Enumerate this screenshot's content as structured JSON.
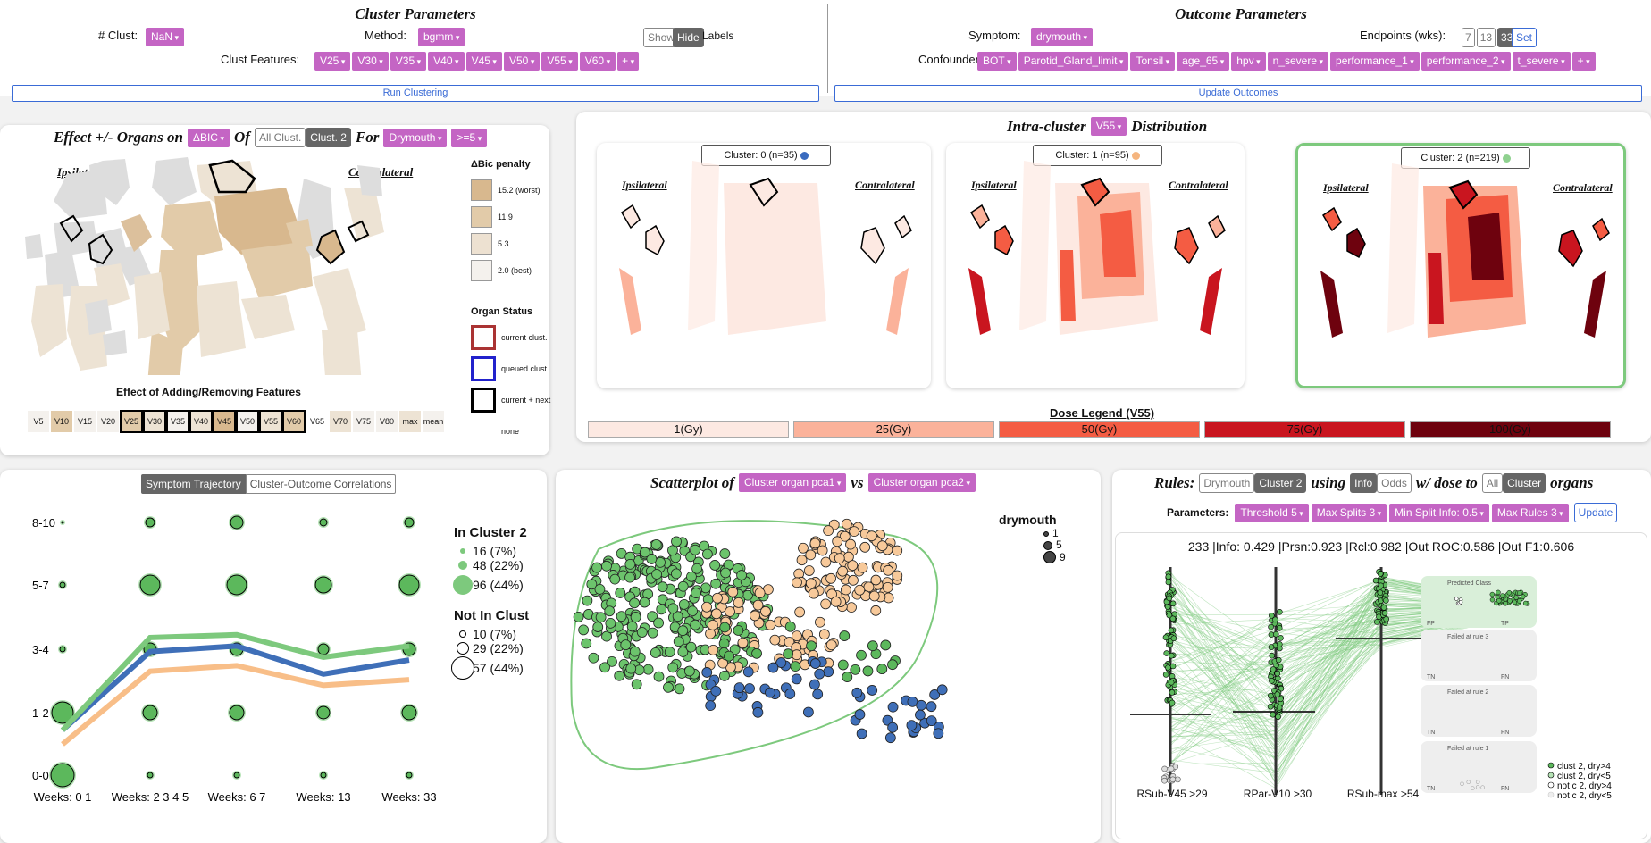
{
  "cluster_params": {
    "title": "Cluster Parameters",
    "nclust_label": "# Clust:",
    "nclust_value": "NaN",
    "method_label": "Method:",
    "method_value": "bgmm",
    "show_label": "Show",
    "hide_label": "Hide",
    "labels_label": "Labels",
    "features_label": "Clust Features:",
    "features": [
      "V25",
      "V30",
      "V35",
      "V40",
      "V45",
      "V50",
      "V55",
      "V60",
      "+"
    ],
    "run_label": "Run Clustering"
  },
  "outcome_params": {
    "title": "Outcome Parameters",
    "symptom_label": "Symptom:",
    "symptom_value": "drymouth",
    "endpoints_label": "Endpoints (wks):",
    "endpoints": [
      "7",
      "13",
      "33"
    ],
    "set_label": "Set",
    "confounders_label": "Confounders:",
    "confounders": [
      "BOT",
      "Parotid_Gland_limit",
      "Tonsil",
      "age_65",
      "hpv",
      "n_severe",
      "performance_1",
      "performance_2",
      "t_severe",
      "+"
    ],
    "update_label": "Update Outcomes"
  },
  "effect_panel": {
    "t1": "Effect +/- Organs on",
    "metric": "ΔBIC",
    "t2": "Of",
    "all_clust": "All Clust.",
    "clust2": "Clust. 2",
    "t3": "For",
    "symptom": "Drymouth",
    "threshold": ">=5",
    "ipsi": "Ipsilateral",
    "contra": "Contralateral",
    "penalty_title": "ΔBic penalty",
    "penalty": [
      {
        "label": "15.2 (worst)",
        "color": "#d8b88e"
      },
      {
        "label": "11.9",
        "color": "#e2cba9"
      },
      {
        "label": "5.3",
        "color": "#ede1d1"
      },
      {
        "label": "2.0 (best)",
        "color": "#f4f1ed"
      }
    ],
    "status_title": "Organ Status",
    "status": [
      {
        "label": "current clust.",
        "color": "#a33"
      },
      {
        "label": "queued clust.",
        "color": "#22c"
      },
      {
        "label": "current + next",
        "color": "#000"
      },
      {
        "label": "none",
        "color": "none"
      }
    ],
    "features_title": "Effect of Adding/Removing Features",
    "features": [
      "V5",
      "V10",
      "V15",
      "V20",
      "V25",
      "V30",
      "V35",
      "V40",
      "V45",
      "V50",
      "V55",
      "V60",
      "V65",
      "V70",
      "V75",
      "V80",
      "max",
      "mean"
    ]
  },
  "dist_panel": {
    "t1": "Intra-cluster",
    "feature": "V55",
    "t2": "Distribution",
    "clusters": [
      {
        "label": "Cluster: 0 (n=35)",
        "dot": "#3a6bbf"
      },
      {
        "label": "Cluster: 1 (n=95)",
        "dot": "#f5b57f"
      },
      {
        "label": "Cluster: 2 (n=219)",
        "dot": "#8fd18f"
      }
    ],
    "ipsi": "Ipsilateral",
    "contra": "Contralateral",
    "legend_title": "Dose Legend (V55)",
    "legend": [
      {
        "label": "1(Gy)",
        "color": "#fde9e2"
      },
      {
        "label": "25(Gy)",
        "color": "#fbb29a"
      },
      {
        "label": "50(Gy)",
        "color": "#f45c43"
      },
      {
        "label": "75(Gy)",
        "color": "#c9151f"
      },
      {
        "label": "100(Gy)",
        "color": "#6e020e"
      }
    ]
  },
  "trajectory": {
    "tab1": "Symptom Trajectory",
    "tab2": "Cluster-Outcome Correlations",
    "y_labels": [
      "8-10",
      "5-7",
      "3-4",
      "1-2",
      "0-0"
    ],
    "x_labels": [
      "Weeks: 0 1",
      "Weeks: 2 3 4 5",
      "Weeks: 6 7",
      "Weeks: 13",
      "Weeks: 33"
    ],
    "lines": [
      {
        "name": "green",
        "color": "#7dc97d",
        "values": [
          1.6,
          4.9,
          5.0,
          4.2,
          4.6
        ]
      },
      {
        "name": "blue",
        "color": "#3f6fb8",
        "values": [
          1.6,
          4.4,
          4.6,
          3.6,
          4.1
        ]
      },
      {
        "name": "orange",
        "color": "#f8be88",
        "values": [
          1.1,
          3.7,
          3.9,
          3.2,
          3.4
        ]
      }
    ],
    "in_title": "In Cluster 2",
    "in_items": [
      "16 (7%)",
      "48 (22%)",
      "96 (44%)"
    ],
    "out_title": "Not In Clust",
    "out_items": [
      "10 (7%)",
      "29 (22%)",
      "57 (44%)"
    ]
  },
  "scatter": {
    "t1": "Scatterplot of",
    "x": "Cluster organ pca1",
    "vs": "vs",
    "y": "Cluster organ pca2",
    "legend_title": "drymouth",
    "legend": [
      "1",
      "5",
      "9"
    ]
  },
  "rules": {
    "t1": "Rules:",
    "b1": "Drymouth",
    "b2": "Cluster 2",
    "t2": "using",
    "b3": "Info",
    "b4": "Odds",
    "t3": "w/ dose to",
    "b5": "All",
    "b6": "Cluster",
    "t4": "organs",
    "params_label": "Parameters:",
    "params": [
      "Threshold 5",
      "Max Splits 3",
      "Min Split Info: 0.5",
      "Max Rules 3"
    ],
    "update": "Update",
    "stats": "233 |Info: 0.429 |Prsn:0.923 |Rcl:0.982 |Out ROC:0.586 |Out F1:0.606",
    "axes": [
      "RSub-V45 >29",
      "RPar-V10 >30",
      "RSub-max >54"
    ],
    "boxes": [
      {
        "title": "Predicted Class",
        "l": "FP",
        "r": "TP"
      },
      {
        "title": "Failed at rule 3",
        "l": "TN",
        "r": "FN"
      },
      {
        "title": "Failed at rule 2",
        "l": "TN",
        "r": "FN"
      },
      {
        "title": "Failed at rule 1",
        "l": "TN",
        "r": "FN"
      }
    ],
    "legend": [
      "clust 2, dry>4",
      "clust 2, dry<5",
      "not c 2, dry>4",
      "not c 2, dry<5"
    ]
  }
}
